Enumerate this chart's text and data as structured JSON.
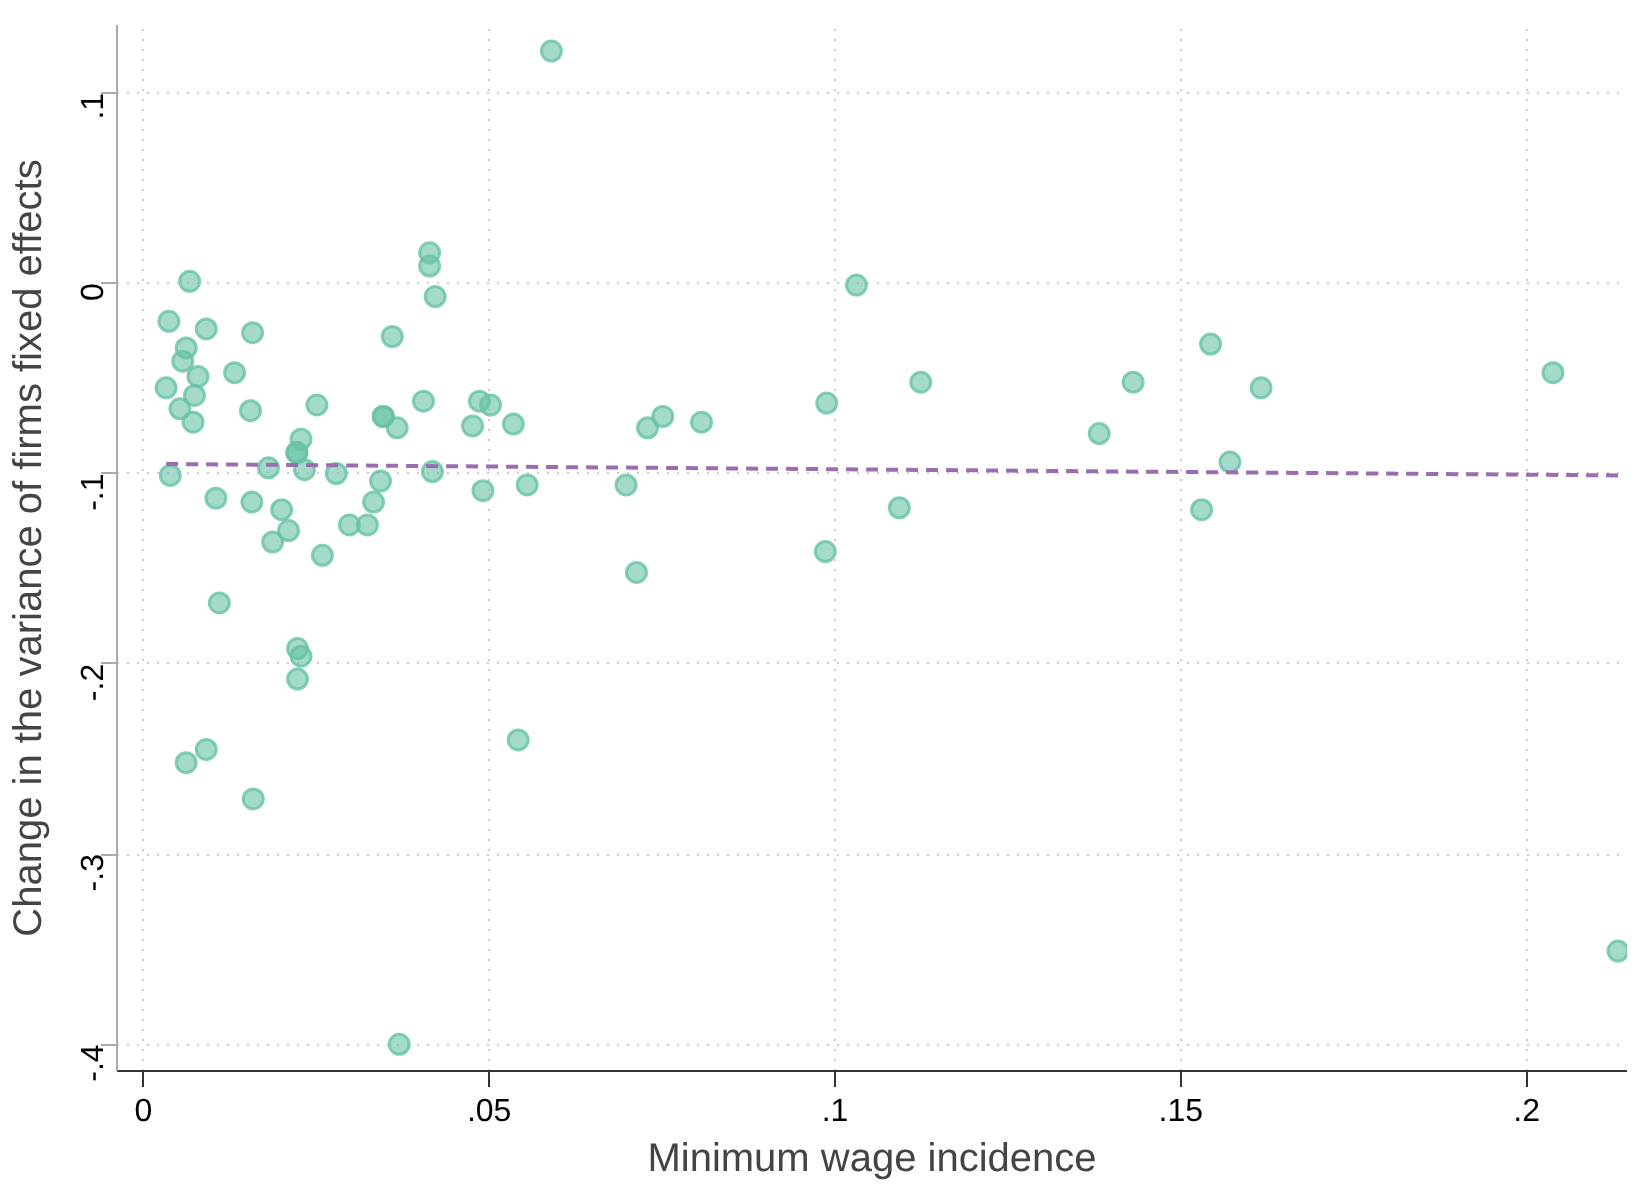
{
  "chart_data": {
    "type": "scatter",
    "xlabel": "Minimum wage incidence",
    "ylabel": "Change in the variance of firms fixed effects",
    "xlim": [
      -0.0038,
      0.2145
    ],
    "ylim": [
      -0.414,
      0.1357
    ],
    "xticks": [
      0,
      {
        "value": 0.05,
        "label": ".05"
      },
      {
        "value": 0.1,
        "label": ".1"
      },
      {
        "value": 0.15,
        "label": ".15"
      },
      {
        "value": 0.2,
        "label": ".2"
      }
    ],
    "yticks": [
      {
        "value": 0.1,
        "label": ".1"
      },
      0,
      {
        "value": -0.1,
        "label": "-.1"
      },
      {
        "value": -0.2,
        "label": "-.2"
      },
      {
        "value": -0.3,
        "label": "-.3"
      },
      {
        "value": -0.4,
        "label": "-.4"
      }
    ],
    "grid": true,
    "series": [
      {
        "color": "#66c2a5",
        "marker": "circle",
        "x": [
          0.059,
          0.0067,
          0.0414,
          0.0414,
          0.0422,
          0.0037,
          0.0091,
          0.0158,
          0.0062,
          0.0057,
          0.0079,
          0.0132,
          0.036,
          0.0033,
          0.0074,
          0.0053,
          0.0072,
          0.0155,
          0.0251,
          0.0347,
          0.0347,
          0.0367,
          0.0405,
          0.0486,
          0.0502,
          0.0476,
          0.0535,
          0.0228,
          0.0222,
          0.0222,
          0.0181,
          0.0233,
          0.0039,
          0.0279,
          0.0418,
          0.0343,
          0.0491,
          0.0555,
          0.0105,
          0.0157,
          0.0333,
          0.02,
          0.021,
          0.0187,
          0.0298,
          0.0324,
          0.0259,
          0.011,
          0.0223,
          0.0228,
          0.0223,
          0.0542,
          0.0091,
          0.0062,
          0.0159,
          0.037,
          0.0698,
          0.0713,
          0.0729,
          0.0751,
          0.0807,
          0.0988,
          0.0986,
          0.1031,
          0.1093,
          0.1124,
          0.1382,
          0.1431,
          0.1543,
          0.153,
          0.1571,
          0.1616,
          0.2038,
          0.2132
        ],
        "values": [
          0.122,
          0.001,
          0.016,
          0.009,
          -0.007,
          -0.02,
          -0.024,
          -0.026,
          -0.034,
          -0.041,
          -0.049,
          -0.047,
          -0.028,
          -0.055,
          -0.059,
          -0.066,
          -0.073,
          -0.067,
          -0.064,
          -0.07,
          -0.07,
          -0.076,
          -0.062,
          -0.062,
          -0.064,
          -0.075,
          -0.074,
          -0.082,
          -0.089,
          -0.089,
          -0.097,
          -0.098,
          -0.101,
          -0.1,
          -0.099,
          -0.104,
          -0.109,
          -0.106,
          -0.113,
          -0.115,
          -0.115,
          -0.119,
          -0.13,
          -0.136,
          -0.127,
          -0.127,
          -0.143,
          -0.168,
          -0.192,
          -0.196,
          -0.208,
          -0.24,
          -0.245,
          -0.252,
          -0.271,
          -0.4,
          -0.106,
          -0.152,
          -0.076,
          -0.07,
          -0.073,
          -0.063,
          -0.141,
          -0.001,
          -0.118,
          -0.052,
          -0.079,
          -0.052,
          -0.032,
          -0.119,
          -0.094,
          -0.055,
          -0.047,
          -0.351
        ]
      },
      {
        "type": "line",
        "color": "#9b6db0",
        "line_style": "dashed",
        "marker": "none",
        "x": [
          0.0033,
          0.2132
        ],
        "values": [
          -0.095,
          -0.101
        ]
      }
    ]
  }
}
